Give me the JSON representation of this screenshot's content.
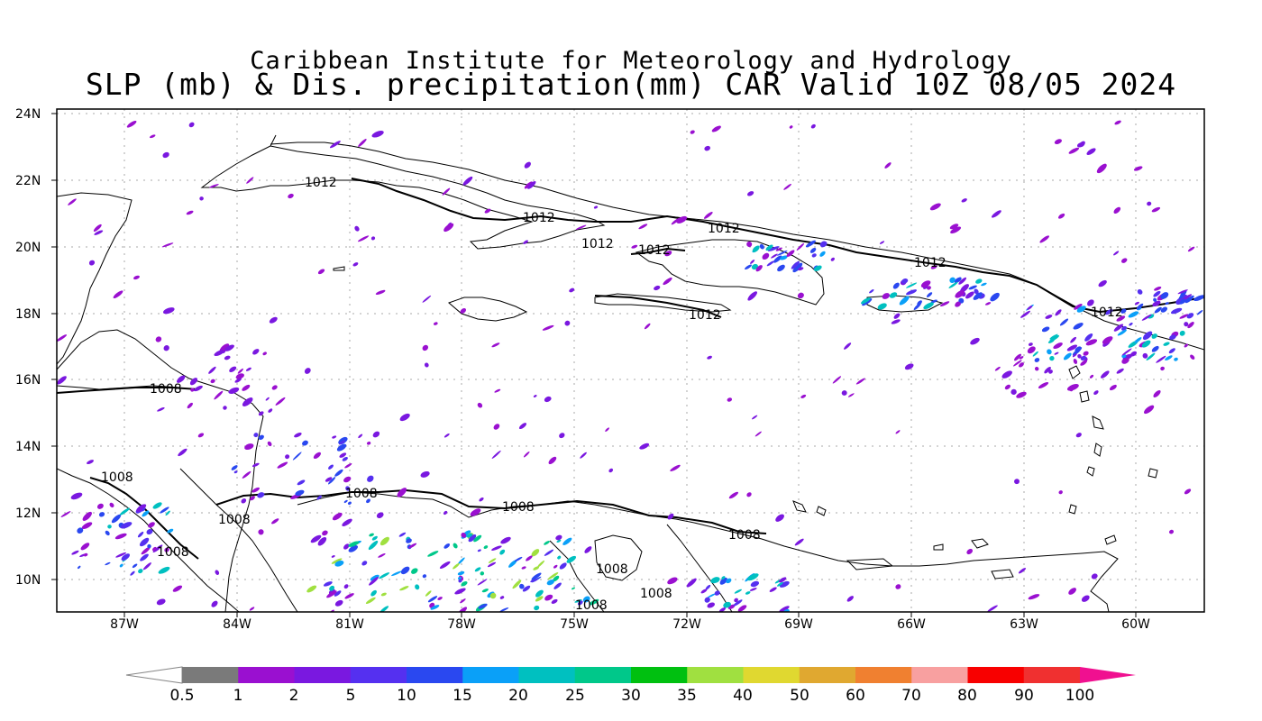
{
  "title": {
    "line1": "Caribbean Institute for Meteorology and Hydrology",
    "line2": "SLP (mb) & Dis. precipitation(mm) CAR Valid 10Z 08/05 2024"
  },
  "map": {
    "lat_ticks": [
      "24N",
      "22N",
      "20N",
      "18N",
      "16N",
      "14N",
      "12N",
      "10N"
    ],
    "lon_ticks": [
      "87W",
      "84W",
      "81W",
      "78W",
      "75W",
      "72W",
      "69W",
      "66W",
      "63W",
      "60W"
    ],
    "isobar_labels": [
      "1012",
      "1012",
      "1012",
      "1012",
      "1012",
      "1012",
      "1012",
      "1008",
      "1008",
      "1008",
      "1008",
      "1008",
      "1008",
      "1008",
      "1008",
      "1008",
      "1008"
    ]
  },
  "colorbar": {
    "labels": [
      "0.5",
      "1",
      "2",
      "5",
      "10",
      "15",
      "20",
      "25",
      "30",
      "35",
      "40",
      "50",
      "60",
      "70",
      "80",
      "90",
      "100"
    ],
    "colors": [
      "#ffffff",
      "#7a7a7a",
      "#9a10d0",
      "#7a18e0",
      "#5530f0",
      "#2a48f0",
      "#0aa0f8",
      "#00c0c0",
      "#00c88a",
      "#00c010",
      "#a0e040",
      "#e0d830",
      "#e0a830",
      "#f08030",
      "#f8a0a0",
      "#f80000",
      "#f03030",
      "#f01090"
    ]
  },
  "precip_colors": [
    "#9a10d0",
    "#7a18e0",
    "#5530f0",
    "#2a48f0",
    "#0aa0f8",
    "#00c0c0",
    "#00c88a",
    "#a0e040",
    "#e0d830"
  ]
}
